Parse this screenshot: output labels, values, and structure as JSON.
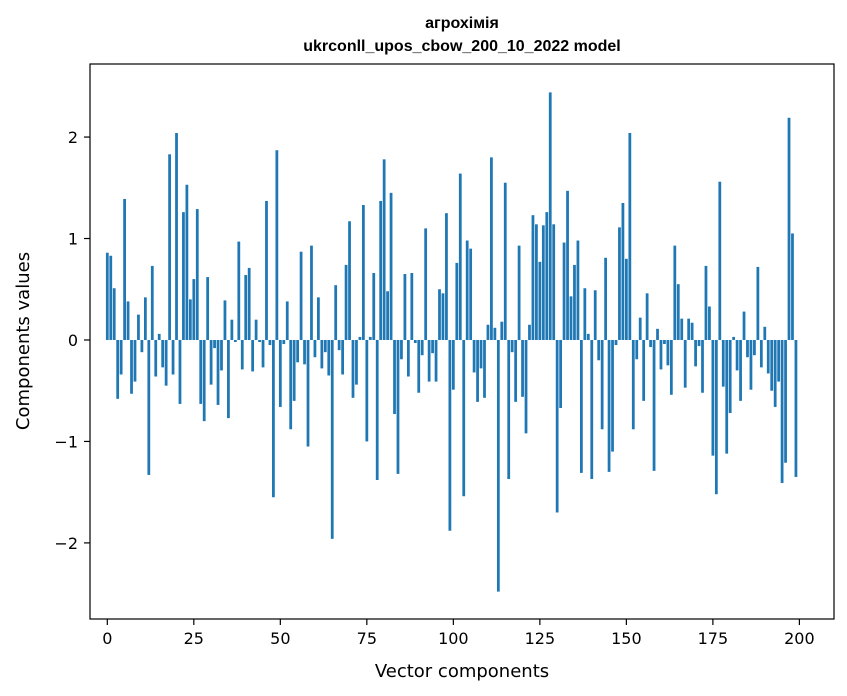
{
  "chart_data": {
    "type": "bar",
    "title": "агрохімія",
    "subtitle": "ukrconll_upos_cbow_200_10_2022 model",
    "xlabel": "Vector components",
    "ylabel": "Components values",
    "xlim": [
      -5,
      210
    ],
    "ylim": [
      -2.75,
      2.72
    ],
    "xticks": [
      0,
      25,
      50,
      75,
      100,
      125,
      150,
      175,
      200
    ],
    "xtick_labels": [
      "0",
      "25",
      "50",
      "75",
      "100",
      "125",
      "150",
      "175",
      "200"
    ],
    "yticks": [
      -2,
      -1,
      0,
      1,
      2
    ],
    "ytick_labels": [
      "−2",
      "−1",
      "0",
      "1",
      "2"
    ],
    "grid": false,
    "bar_color": "#1f77b4",
    "x": [
      0,
      1,
      2,
      3,
      4,
      5,
      6,
      7,
      8,
      9,
      10,
      11,
      12,
      13,
      14,
      15,
      16,
      17,
      18,
      19,
      20,
      21,
      22,
      23,
      24,
      25,
      26,
      27,
      28,
      29,
      30,
      31,
      32,
      33,
      34,
      35,
      36,
      37,
      38,
      39,
      40,
      41,
      42,
      43,
      44,
      45,
      46,
      47,
      48,
      49,
      50,
      51,
      52,
      53,
      54,
      55,
      56,
      57,
      58,
      59,
      60,
      61,
      62,
      63,
      64,
      65,
      66,
      67,
      68,
      69,
      70,
      71,
      72,
      73,
      74,
      75,
      76,
      77,
      78,
      79,
      80,
      81,
      82,
      83,
      84,
      85,
      86,
      87,
      88,
      89,
      90,
      91,
      92,
      93,
      94,
      95,
      96,
      97,
      98,
      99,
      100,
      101,
      102,
      103,
      104,
      105,
      106,
      107,
      108,
      109,
      110,
      111,
      112,
      113,
      114,
      115,
      116,
      117,
      118,
      119,
      120,
      121,
      122,
      123,
      124,
      125,
      126,
      127,
      128,
      129,
      130,
      131,
      132,
      133,
      134,
      135,
      136,
      137,
      138,
      139,
      140,
      141,
      142,
      143,
      144,
      145,
      146,
      147,
      148,
      149,
      150,
      151,
      152,
      153,
      154,
      155,
      156,
      157,
      158,
      159,
      160,
      161,
      162,
      163,
      164,
      165,
      166,
      167,
      168,
      169,
      170,
      171,
      172,
      173,
      174,
      175,
      176,
      177,
      178,
      179,
      180,
      181,
      182,
      183,
      184,
      185,
      186,
      187,
      188,
      189,
      190,
      191,
      192,
      193,
      194,
      195,
      196,
      197,
      198,
      199
    ],
    "values": [
      0.86,
      0.83,
      0.51,
      -0.58,
      -0.34,
      1.39,
      0.38,
      -0.53,
      -0.41,
      0.25,
      -0.12,
      0.42,
      -1.33,
      0.73,
      -0.36,
      0.06,
      -0.27,
      -0.45,
      1.83,
      -0.34,
      2.04,
      -0.63,
      1.26,
      1.53,
      0.4,
      0.6,
      1.29,
      -0.63,
      -0.8,
      0.62,
      -0.44,
      -0.08,
      -0.64,
      -0.3,
      0.39,
      -0.77,
      0.2,
      -0.02,
      0.97,
      -0.29,
      0.64,
      0.71,
      -0.31,
      0.2,
      -0.02,
      -0.27,
      1.37,
      -0.05,
      -1.55,
      1.87,
      -0.66,
      -0.04,
      0.38,
      -0.88,
      -0.6,
      -0.22,
      0.87,
      -0.24,
      -1.05,
      0.93,
      -0.17,
      0.42,
      -0.28,
      -0.12,
      -0.35,
      -1.96,
      0.54,
      -0.1,
      -0.34,
      0.74,
      1.17,
      -0.57,
      -0.44,
      0.03,
      1.33,
      -1.0,
      0.03,
      0.66,
      -1.38,
      1.37,
      1.78,
      0.48,
      1.45,
      -0.73,
      -1.32,
      -0.19,
      0.65,
      -0.36,
      0.66,
      -0.03,
      -0.52,
      -0.15,
      1.1,
      -0.41,
      -0.13,
      -0.41,
      0.5,
      0.46,
      1.25,
      -1.88,
      -0.49,
      0.76,
      1.64,
      -1.54,
      0.98,
      0.9,
      -0.32,
      -0.61,
      -0.28,
      -0.57,
      0.15,
      1.8,
      0.12,
      -2.48,
      0.18,
      1.55,
      -1.37,
      -0.12,
      -0.61,
      0.93,
      -0.56,
      -0.92,
      0.15,
      1.23,
      1.14,
      0.77,
      1.13,
      1.26,
      2.44,
      1.14,
      -1.7,
      -0.67,
      0.96,
      1.47,
      0.43,
      0.74,
      0.98,
      -1.31,
      0.51,
      0.06,
      -1.37,
      0.49,
      -0.2,
      -0.88,
      0.81,
      -1.3,
      -1.1,
      -0.05,
      1.11,
      1.35,
      0.8,
      2.04,
      -0.88,
      -0.19,
      0.22,
      -0.6,
      0.46,
      -0.07,
      -1.29,
      0.11,
      -0.29,
      -0.04,
      -0.25,
      -0.54,
      0.93,
      0.55,
      0.21,
      -0.47,
      0.21,
      0.17,
      -0.26,
      -0.06,
      -0.52,
      0.73,
      0.33,
      -1.14,
      -1.52,
      1.56,
      -0.46,
      -1.12,
      -0.72,
      0.03,
      -0.3,
      -0.6,
      0.28,
      -0.17,
      -0.49,
      -0.15,
      0.72,
      -0.27,
      0.13,
      -0.33,
      -0.5,
      -0.66,
      -0.41,
      -1.41,
      -1.21,
      2.19,
      1.05,
      -1.35
    ]
  }
}
